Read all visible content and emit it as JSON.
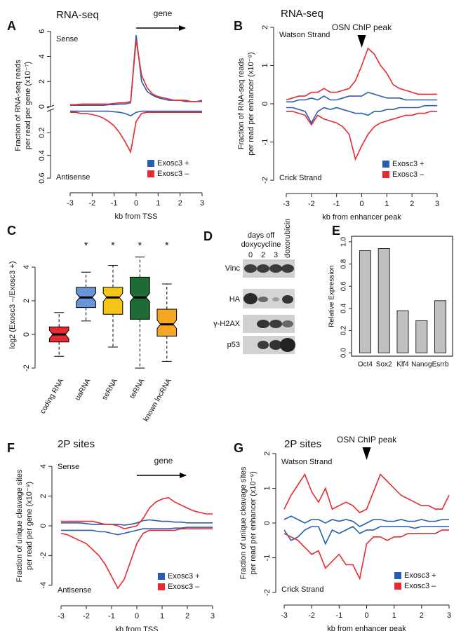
{
  "chart_data": [
    {
      "panel": "A",
      "type": "line",
      "title": "RNA-seq",
      "upper_label": "Sense",
      "lower_label": "Antisense",
      "marker": "arrow",
      "marker_label": "gene",
      "xlabel": "kb from TSS",
      "ylabel": [
        "Fraction of RNA-seq reads",
        "per read per gene (x10⁻⁷)"
      ],
      "x": [
        -3,
        -2.75,
        -2.5,
        -2.25,
        -2,
        -1.75,
        -1.5,
        -1.25,
        -1,
        -0.75,
        -0.5,
        -0.25,
        0,
        0.25,
        0.5,
        0.75,
        1,
        1.25,
        1.5,
        1.75,
        2,
        2.25,
        2.5,
        2.75,
        3
      ],
      "xlim": [
        -3,
        3
      ],
      "xticks": [
        -3,
        -2,
        -1,
        0,
        1,
        2,
        3
      ],
      "ylim": [
        0,
        6.6
      ],
      "yticks": [
        0,
        2,
        4,
        6
      ],
      "y2lim": [
        0,
        0.68
      ],
      "y2ticks": [
        0.2,
        0.4,
        0.6
      ],
      "legend": "bottom-right",
      "series": [
        {
          "name": "Exosc3 +",
          "color": "#2a5db0",
          "values": [
            0.1,
            0.1,
            0.1,
            0.1,
            0.1,
            0.1,
            0.1,
            0.15,
            0.15,
            0.2,
            0.2,
            0.3,
            5.7,
            2.0,
            1.2,
            0.9,
            0.7,
            0.6,
            0.5,
            0.5,
            0.5,
            0.4,
            0.4,
            0.4,
            0.5
          ],
          "values_lower": [
            0.01,
            0.01,
            0.01,
            0.01,
            0.01,
            0.01,
            0.01,
            0.01,
            0.015,
            0.02,
            0.03,
            0.05,
            0.02,
            0.01,
            0.01,
            0.01,
            0.01,
            0.01,
            0.01,
            0.01,
            0.01,
            0.01,
            0.01,
            0.01,
            0.01
          ]
        },
        {
          "name": "Exosc3 –",
          "color": "#e8292f",
          "values": [
            0.15,
            0.15,
            0.2,
            0.2,
            0.2,
            0.2,
            0.2,
            0.2,
            0.25,
            0.3,
            0.3,
            0.4,
            5.3,
            2.5,
            1.5,
            1.0,
            0.8,
            0.7,
            0.6,
            0.5,
            0.5,
            0.5,
            0.4,
            0.4,
            0.4
          ],
          "values_lower": [
            0.02,
            0.02,
            0.03,
            0.03,
            0.04,
            0.05,
            0.07,
            0.1,
            0.14,
            0.2,
            0.28,
            0.37,
            0.1,
            0.03,
            0.02,
            0.02,
            0.02,
            0.02,
            0.02,
            0.02,
            0.02,
            0.02,
            0.02,
            0.02,
            0.02
          ]
        }
      ]
    },
    {
      "panel": "B",
      "type": "line",
      "title": "RNA-seq",
      "upper_label": "Watson Strand",
      "lower_label": "Crick Strand",
      "marker": "triangle",
      "marker_label": "OSN ChIP peak",
      "xlabel": "kb from enhancer peak",
      "ylabel": [
        "Fraction of RNA-seq reads",
        "per read per enhancer (x10⁻⁸)"
      ],
      "x": [
        -3,
        -2.75,
        -2.5,
        -2.25,
        -2,
        -1.75,
        -1.5,
        -1.25,
        -1,
        -0.75,
        -0.5,
        -0.25,
        0,
        0.25,
        0.5,
        0.75,
        1,
        1.25,
        1.5,
        1.75,
        2,
        2.25,
        2.5,
        2.75,
        3
      ],
      "xlim": [
        -3,
        3
      ],
      "xticks": [
        -3,
        -2,
        -1,
        0,
        1,
        2,
        3
      ],
      "ylim": [
        -2.2,
        2.2
      ],
      "yticks": [
        -2,
        -1,
        0,
        1,
        2
      ],
      "legend": "bottom-right",
      "series": [
        {
          "name": "Exosc3 +",
          "color": "#2a5db0",
          "values": [
            0.05,
            0.05,
            0.1,
            0.1,
            0.15,
            0.1,
            0.2,
            0.1,
            0.1,
            0.15,
            0.2,
            0.2,
            0.2,
            0.3,
            0.25,
            0.2,
            0.15,
            0.15,
            0.15,
            0.1,
            0.1,
            0.1,
            0.1,
            0.1,
            0.1
          ],
          "values_lower": [
            -0.1,
            -0.1,
            -0.15,
            -0.2,
            -0.5,
            -0.2,
            -0.1,
            -0.15,
            -0.1,
            -0.15,
            -0.2,
            -0.25,
            -0.25,
            -0.3,
            -0.2,
            -0.2,
            -0.15,
            -0.15,
            -0.1,
            -0.1,
            -0.1,
            -0.1,
            -0.05,
            -0.05,
            -0.05
          ]
        },
        {
          "name": "Exosc3 –",
          "color": "#e8292f",
          "values": [
            0.1,
            0.15,
            0.2,
            0.2,
            0.3,
            0.3,
            0.4,
            0.3,
            0.3,
            0.35,
            0.4,
            0.6,
            1.0,
            1.45,
            1.3,
            1.0,
            0.8,
            0.5,
            0.4,
            0.35,
            0.3,
            0.25,
            0.25,
            0.25,
            0.25
          ],
          "values_lower": [
            -0.2,
            -0.2,
            -0.25,
            -0.3,
            -0.55,
            -0.3,
            -0.4,
            -0.45,
            -0.5,
            -0.6,
            -0.8,
            -1.45,
            -1.1,
            -0.8,
            -0.6,
            -0.5,
            -0.45,
            -0.4,
            -0.35,
            -0.3,
            -0.3,
            -0.25,
            -0.25,
            -0.2,
            -0.2
          ]
        }
      ]
    },
    {
      "panel": "C",
      "type": "box",
      "ylabel": "log2 (Exosc3 –/Exosc3 +)",
      "categories": [
        "coding RNA",
        "uaRNA",
        "seRNA",
        "teRNA",
        "known lncRNA"
      ],
      "stars": [
        null,
        "*",
        "*",
        "*",
        "*"
      ],
      "ylim": [
        -2.5,
        6
      ],
      "yticks": [
        -2,
        0,
        2,
        4
      ],
      "boxes": [
        {
          "color": "#e8292f",
          "low": -1.3,
          "q1": -0.45,
          "median": 0,
          "q3": 0.45,
          "high": 1.3
        },
        {
          "color": "#6a94d8",
          "low": 0.8,
          "q1": 1.6,
          "median": 2.2,
          "q3": 2.8,
          "high": 3.7
        },
        {
          "color": "#f5c518",
          "low": -0.75,
          "q1": 1.2,
          "median": 2.2,
          "q3": 2.8,
          "high": 4.1
        },
        {
          "color": "#1e6b35",
          "low": -2.0,
          "q1": 0.9,
          "median": 2.2,
          "q3": 3.4,
          "high": 4.6
        },
        {
          "color": "#f5a623",
          "low": -1.6,
          "q1": -0.1,
          "median": 0.6,
          "q3": 1.5,
          "high": 3.0
        }
      ]
    },
    {
      "panel": "E",
      "type": "bar",
      "ylabel": "Relative Expression",
      "color": "#c0c0c0",
      "categories": [
        "Oct4",
        "Sox2",
        "Klf4",
        "Nanog",
        "Esrrb"
      ],
      "values": [
        0.92,
        0.94,
        0.38,
        0.29,
        0.47
      ],
      "ylim": [
        -0.03,
        1.05
      ],
      "yticks": [
        {
          "value": 0,
          "label": "0.0"
        },
        0.2,
        0.4,
        0.6,
        0.8,
        {
          "value": 1,
          "label": "1.0"
        }
      ]
    },
    {
      "panel": "F",
      "type": "line",
      "title": "2P sites",
      "upper_label": "Sense",
      "lower_label": "Antisense",
      "marker": "arrow",
      "marker_label": "gene",
      "xlabel": "kb from TSS",
      "ylabel": [
        "Fraction of unique cleavage sites",
        "per read per gene (x10⁻⁹)"
      ],
      "x": [
        -3,
        -2.75,
        -2.5,
        -2.25,
        -2,
        -1.75,
        -1.5,
        -1.25,
        -1,
        -0.75,
        -0.5,
        -0.25,
        0,
        0.25,
        0.5,
        0.75,
        1,
        1.25,
        1.5,
        1.75,
        2,
        2.25,
        2.5,
        2.75,
        3
      ],
      "xlim": [
        -3,
        3
      ],
      "xticks": [
        -3,
        -2,
        -1,
        0,
        1,
        2,
        3
      ],
      "ylim": [
        -5,
        5
      ],
      "yticks": [
        -4,
        -2,
        0,
        2,
        4
      ],
      "legend": "bottom-right",
      "series": [
        {
          "name": "Exosc3 +",
          "color": "#2a5db0",
          "values": [
            0.2,
            0.2,
            0.2,
            0.2,
            0.15,
            0.1,
            0.1,
            0.1,
            0.1,
            0.1,
            0.05,
            0.1,
            0.2,
            0.35,
            0.4,
            0.35,
            0.3,
            0.3,
            0.25,
            0.25,
            0.2,
            0.2,
            0.2,
            0.2,
            0.2
          ],
          "values_lower": [
            -0.3,
            -0.3,
            -0.3,
            -0.3,
            -0.3,
            -0.3,
            -0.4,
            -0.4,
            -0.5,
            -0.6,
            -0.5,
            -0.4,
            -0.3,
            -0.2,
            -0.2,
            -0.2,
            -0.2,
            -0.2,
            -0.15,
            -0.15,
            -0.1,
            -0.1,
            -0.1,
            -0.1,
            -0.1
          ]
        },
        {
          "name": "Exosc3 –",
          "color": "#e8292f",
          "values": [
            0.3,
            0.3,
            0.3,
            0.3,
            0.3,
            0.3,
            0.2,
            0.1,
            0.1,
            0.0,
            -0.2,
            -0.1,
            0.0,
            0.5,
            1.2,
            1.6,
            1.8,
            1.9,
            1.6,
            1.4,
            1.2,
            1.0,
            0.9,
            0.8,
            0.8
          ],
          "values_lower": [
            -0.5,
            -0.6,
            -0.8,
            -1.0,
            -1.2,
            -1.6,
            -2.0,
            -2.6,
            -3.4,
            -4.2,
            -3.6,
            -2.4,
            -1.2,
            -0.5,
            -0.3,
            -0.3,
            -0.3,
            -0.3,
            -0.3,
            -0.2,
            -0.2,
            -0.2,
            -0.2,
            -0.2,
            -0.2
          ]
        }
      ]
    },
    {
      "panel": "G",
      "type": "line",
      "title": "2P sites",
      "upper_label": "Watson Strand",
      "lower_label": "Crick Strand",
      "marker": "triangle",
      "marker_label": "OSN ChIP peak",
      "xlabel": "kb from enhancer peak",
      "ylabel": [
        "Fraction of unique cleavage sites",
        "per read per enhancer (x10⁻⁹)"
      ],
      "x": [
        -3,
        -2.75,
        -2.5,
        -2.25,
        -2,
        -1.75,
        -1.5,
        -1.25,
        -1,
        -0.75,
        -0.5,
        -0.25,
        0,
        0.25,
        0.5,
        0.75,
        1,
        1.25,
        1.5,
        1.75,
        2,
        2.25,
        2.5,
        2.75,
        3
      ],
      "xlim": [
        -3,
        3
      ],
      "xticks": [
        -3,
        -2,
        -1,
        0,
        1,
        2,
        3
      ],
      "ylim": [
        -2.2,
        2.2
      ],
      "yticks": [
        -2,
        -1,
        0,
        1,
        2
      ],
      "legend": "bottom-right",
      "series": [
        {
          "name": "Exosc3 +",
          "color": "#2a5db0",
          "values": [
            0.1,
            0.2,
            0.1,
            0.0,
            0.1,
            0.1,
            0.0,
            0.1,
            0.05,
            0.1,
            0.05,
            -0.1,
            0.0,
            0.1,
            0.1,
            0.05,
            0.05,
            0.1,
            0.05,
            0.05,
            0.1,
            0.05,
            0.05,
            0.1,
            0.1
          ],
          "values_lower": [
            -0.2,
            -0.5,
            -0.4,
            -0.2,
            -0.1,
            -0.1,
            -0.6,
            -0.2,
            -0.3,
            -0.2,
            -0.1,
            -0.3,
            -0.2,
            -0.2,
            -0.1,
            -0.1,
            -0.1,
            -0.1,
            -0.1,
            -0.15,
            -0.1,
            -0.1,
            -0.1,
            -0.1,
            -0.1
          ]
        },
        {
          "name": "Exosc3 –",
          "color": "#e8292f",
          "values": [
            0.4,
            0.8,
            1.1,
            1.4,
            0.9,
            0.6,
            1.0,
            0.4,
            0.5,
            0.6,
            0.5,
            0.3,
            0.4,
            0.9,
            1.4,
            1.2,
            1.0,
            0.8,
            0.7,
            0.6,
            0.5,
            0.5,
            0.4,
            0.4,
            0.8
          ],
          "values_lower": [
            -0.3,
            -0.4,
            -0.5,
            -0.7,
            -0.9,
            -0.8,
            -1.3,
            -1.1,
            -0.9,
            -1.2,
            -1.2,
            -1.6,
            -0.6,
            -0.4,
            -0.4,
            -0.5,
            -0.4,
            -0.4,
            -0.3,
            -0.3,
            -0.3,
            -0.3,
            -0.3,
            -0.2,
            -0.2
          ]
        }
      ]
    }
  ],
  "blot": {
    "panel": "D",
    "header": [
      "days off",
      "doxycycline"
    ],
    "lanes": [
      "0",
      "2",
      "3",
      "doxorubicin"
    ],
    "rows": [
      "Vinc",
      "HA",
      "γ-H2AX",
      "p53"
    ]
  }
}
